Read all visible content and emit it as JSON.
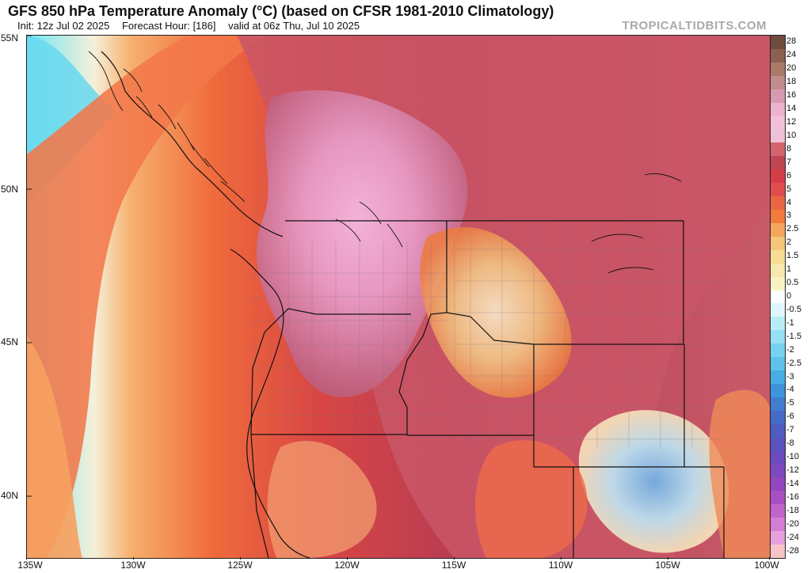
{
  "header": {
    "title": "GFS 850 hPa Temperature Anomaly (°C) (based on CFSR 1981-2010 Climatology)",
    "init": "Init: 12z Jul 02 2025",
    "forecast": "Forecast Hour: [186]",
    "valid": "valid at 06z Thu, Jul 10 2025",
    "site": "TROPICALTIDBITS.COM"
  },
  "map": {
    "latitudes": [
      "55N",
      "50N",
      "45N",
      "40N"
    ],
    "longitudes": [
      "135W",
      "130W",
      "125W",
      "120W",
      "115W",
      "110W",
      "105W",
      "100W"
    ],
    "colors": {
      "ocean_cool": "#5cd6ef",
      "ocean_warm": "#f06b3c",
      "coastal_red": "#a92c45",
      "pink_core": "#e6a4c9",
      "hot_core": "#f4a2d9",
      "yellow_patch": "#f6e4a3",
      "cold_patch": "#77b6e5",
      "boundary_line": "#111111",
      "county_line": "#8a6f7b"
    }
  },
  "colorbar": {
    "labels": [
      "28",
      "24",
      "20",
      "18",
      "16",
      "14",
      "12",
      "10",
      "8",
      "7",
      "6",
      "5",
      "4",
      "3",
      "2.5",
      "2",
      "1.5",
      "1",
      "0.5",
      "0",
      "-0.5",
      "-1",
      "-1.5",
      "-2",
      "-2.5",
      "-3",
      "-4",
      "-5",
      "-6",
      "-7",
      "-8",
      "-10",
      "-12",
      "-14",
      "-16",
      "-18",
      "-20",
      "-24",
      "-28"
    ],
    "colors": [
      "#6f4b3e",
      "#8c6050",
      "#a97a68",
      "#c18d8c",
      "#d79bb0",
      "#ebb3ce",
      "#f3c0db",
      "#eec1d7",
      "#d3646e",
      "#be4753",
      "#d43c47",
      "#e04d4c",
      "#ea6642",
      "#f27a3a",
      "#f5a55d",
      "#f5c579",
      "#f8dc93",
      "#f8e7ae",
      "#fbf2c4",
      "#ffffff",
      "#dff7fb",
      "#b8edf7",
      "#95e0f3",
      "#78d1ee",
      "#5ec2ea",
      "#46aee4",
      "#3d94da",
      "#417ccf",
      "#456ac8",
      "#4f5cc1",
      "#5a52bf",
      "#6a4bc0",
      "#7d49be",
      "#9147bd",
      "#a84fc1",
      "#c064c9",
      "#d37ed2",
      "#e8a0dc",
      "#f7c5c7"
    ]
  }
}
